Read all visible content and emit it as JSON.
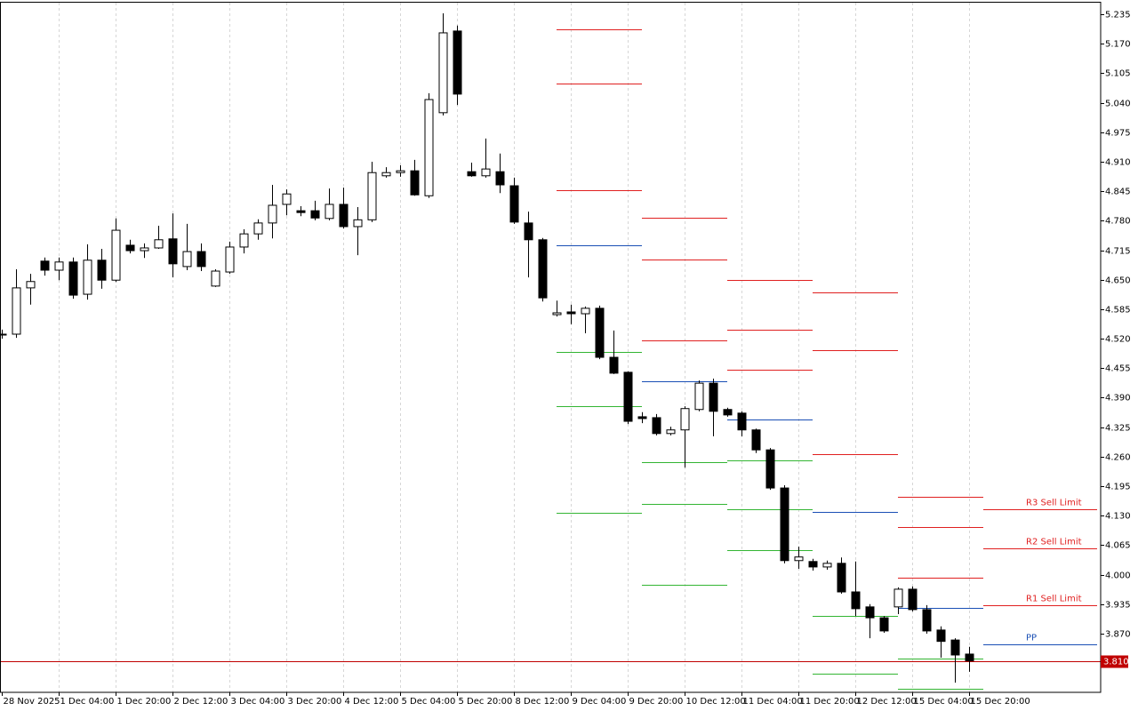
{
  "chart_data": {
    "type": "candlestick",
    "categories": [
      "28 Nov 2025",
      null,
      null,
      null,
      "1 Dec 04:00",
      null,
      null,
      null,
      "1 Dec 20:00",
      null,
      null,
      null,
      "2 Dec 12:00",
      null,
      null,
      null,
      "3 Dec 04:00",
      null,
      null,
      null,
      "3 Dec 20:00",
      null,
      null,
      null,
      "4 Dec 12:00",
      null,
      null,
      null,
      "5 Dec 04:00",
      null,
      null,
      null,
      "5 Dec 20:00",
      null,
      null,
      null,
      "8 Dec 12:00",
      null,
      null,
      null,
      "9 Dec 04:00",
      null,
      null,
      null,
      "9 Dec 20:00",
      null,
      null,
      null,
      "10 Dec 12:00",
      null,
      null,
      null,
      "11 Dec 04:00",
      null,
      null,
      null,
      "11 Dec 20:00",
      null,
      null,
      null,
      "12 Dec 12:00",
      null,
      null,
      null,
      "15 Dec 04:00",
      null,
      null,
      null,
      "15 Dec 20:00"
    ],
    "open": [
      4.528,
      4.53,
      4.632,
      4.691,
      4.671,
      4.689,
      4.618,
      4.693,
      4.649,
      4.726,
      4.714,
      4.72,
      4.74,
      4.679,
      4.712,
      4.636,
      4.667,
      4.722,
      4.751,
      4.775,
      4.816,
      4.802,
      4.802,
      4.785,
      4.816,
      4.767,
      4.782,
      4.879,
      4.886,
      4.89,
      4.835,
      5.018,
      5.198,
      4.888,
      4.879,
      4.888,
      4.857,
      4.775,
      4.738,
      4.573,
      4.579,
      4.575,
      4.587,
      4.479,
      4.446,
      4.348,
      4.346,
      4.311,
      4.319,
      4.364,
      4.422,
      4.364,
      4.356,
      4.319,
      4.275,
      4.191,
      4.031,
      4.029,
      4.017,
      4.025,
      3.962,
      3.929,
      3.905,
      3.929,
      3.968,
      3.923,
      3.878,
      3.856,
      3.825
    ],
    "high": [
      4.54,
      4.673,
      4.663,
      4.699,
      4.699,
      4.699,
      4.728,
      4.718,
      4.785,
      4.738,
      4.73,
      4.769,
      4.796,
      4.773,
      4.73,
      4.673,
      4.734,
      4.761,
      4.783,
      4.859,
      4.849,
      4.812,
      4.824,
      4.851,
      4.853,
      4.81,
      4.91,
      4.898,
      4.902,
      4.914,
      5.061,
      5.237,
      5.21,
      4.908,
      4.961,
      4.928,
      4.875,
      4.8,
      4.742,
      4.604,
      4.595,
      4.591,
      4.593,
      4.538,
      4.448,
      4.358,
      4.354,
      4.326,
      4.371,
      4.428,
      4.432,
      4.368,
      4.36,
      4.322,
      4.279,
      4.197,
      4.062,
      4.035,
      4.031,
      4.038,
      4.029,
      3.935,
      3.909,
      3.972,
      3.974,
      3.933,
      3.886,
      3.86,
      3.841
    ],
    "low": [
      4.52,
      4.522,
      4.595,
      4.659,
      4.649,
      4.608,
      4.606,
      4.63,
      4.645,
      4.708,
      4.698,
      4.718,
      4.655,
      4.671,
      4.669,
      4.634,
      4.663,
      4.708,
      4.738,
      4.741,
      4.792,
      4.79,
      4.781,
      4.781,
      4.763,
      4.704,
      4.777,
      4.875,
      4.877,
      4.835,
      4.83,
      5.012,
      5.035,
      4.877,
      4.875,
      4.841,
      4.773,
      4.655,
      4.602,
      4.569,
      4.552,
      4.532,
      4.475,
      4.442,
      4.332,
      4.334,
      4.307,
      4.307,
      4.236,
      4.36,
      4.305,
      4.348,
      4.305,
      4.268,
      4.187,
      4.025,
      4.013,
      4.009,
      4.011,
      3.958,
      3.909,
      3.86,
      3.872,
      3.913,
      3.919,
      3.87,
      3.817,
      3.762,
      3.786
    ],
    "close": [
      4.53,
      4.632,
      4.646,
      4.671,
      4.689,
      4.616,
      4.693,
      4.649,
      4.759,
      4.714,
      4.72,
      4.738,
      4.685,
      4.712,
      4.679,
      4.669,
      4.722,
      4.751,
      4.775,
      4.814,
      4.839,
      4.798,
      4.786,
      4.816,
      4.767,
      4.782,
      4.886,
      4.886,
      4.89,
      4.837,
      5.047,
      5.194,
      5.059,
      4.879,
      4.894,
      4.859,
      4.777,
      4.738,
      4.61,
      4.577,
      4.575,
      4.587,
      4.479,
      4.444,
      4.338,
      4.344,
      4.311,
      4.319,
      4.366,
      4.422,
      4.36,
      4.352,
      4.319,
      4.275,
      4.191,
      4.031,
      4.039,
      4.017,
      4.025,
      3.962,
      3.925,
      3.905,
      3.876,
      3.968,
      3.923,
      3.876,
      3.853,
      3.823,
      3.81
    ],
    "up_color": "#ffffff",
    "down_color": "#000000",
    "ylim": [
      3.7407,
      5.2605
    ],
    "yticks": [
      5.235,
      {
        "value": 5.17,
        "label": "5.170"
      },
      5.105,
      {
        "value": 5.04,
        "label": "5.040"
      },
      4.975,
      {
        "value": 4.91,
        "label": "4.910"
      },
      4.845,
      {
        "value": 4.78,
        "label": "4.780"
      },
      4.715,
      {
        "value": 4.65,
        "label": "4.650"
      },
      4.585,
      {
        "value": 4.52,
        "label": "4.520"
      },
      4.455,
      {
        "value": 4.39,
        "label": "4.390"
      },
      4.325,
      {
        "value": 4.26,
        "label": "4.260"
      },
      4.195,
      {
        "value": 4.13,
        "label": "4.130"
      },
      4.065,
      {
        "value": 4,
        "label": "4.000"
      },
      3.935,
      {
        "value": 3.87,
        "label": "3.870"
      }
    ],
    "grid": true,
    "current_price": {
      "value": 3.81,
      "label": "3.810"
    },
    "current_price_color": "#c00000",
    "pivots": {
      "colors": [
        "#e02020",
        "#e02020",
        "#e02020",
        "#1a4fb5",
        "#33b533",
        "#33b533",
        "#33b533"
      ],
      "levels": [
        [
          5.202,
          5.082,
          4.847,
          4.726,
          4.491,
          4.371,
          4.136
        ],
        [
          4.787,
          4.694,
          4.516,
          4.426,
          4.248,
          4.156,
          3.978
        ],
        [
          4.649,
          4.54,
          4.452,
          4.342,
          4.252,
          4.144,
          4.054
        ],
        [
          4.622,
          4.495,
          4.266,
          4.138,
          3.909,
          3.782,
          null
        ],
        [
          4.172,
          4.105,
          3.993,
          3.927,
          3.815,
          3.749,
          null
        ],
        [
          4.144,
          4.058,
          3.933,
          3.847,
          null,
          null,
          null
        ]
      ],
      "labels": [
        "R3 Sell Limit",
        "R2 Sell Limit",
        "R1 Sell Limit",
        "PP"
      ]
    }
  }
}
